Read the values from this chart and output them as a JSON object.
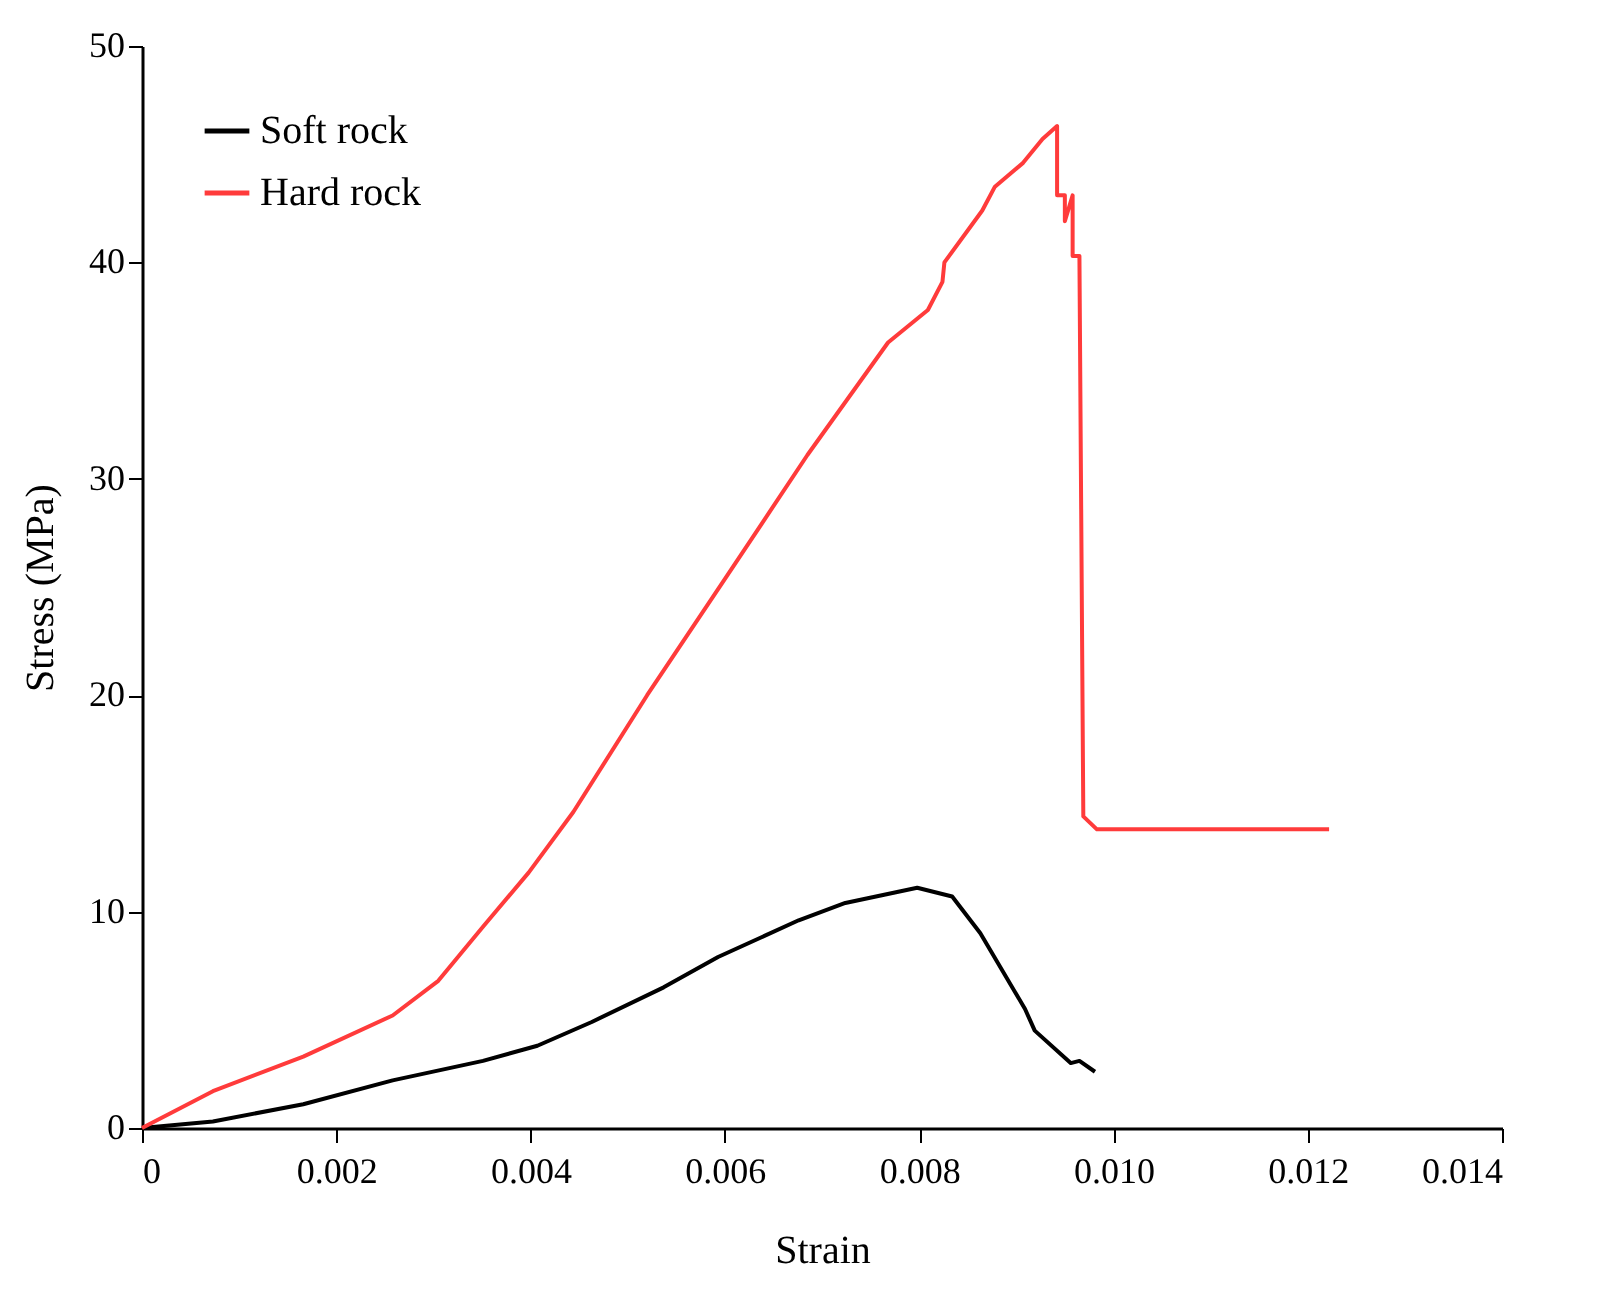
{
  "chart_data": {
    "type": "line",
    "xlabel": "Strain",
    "ylabel": "Stress (MPa)",
    "xlim": [
      0,
      0.014
    ],
    "ylim": [
      0,
      50
    ],
    "xticks": [
      0,
      0.002,
      0.004,
      0.006,
      0.008,
      {
        "value": 0.01,
        "label": "0.010"
      },
      0.012,
      0.014
    ],
    "yticks": [
      0,
      10,
      20,
      30,
      40,
      50
    ],
    "grid": false,
    "legend": "top left",
    "line_style": "solid",
    "marker": "none",
    "series": [
      {
        "name": "Soft rock",
        "color": "#000000",
        "x": [
          0,
          0.00073,
          0.00166,
          0.00258,
          0.00351,
          0.00407,
          0.00463,
          0.00537,
          0.00593,
          0.00676,
          0.00724,
          0.00798,
          0.00834,
          0.00863,
          0.00909,
          0.00919,
          0.00956,
          0.00965,
          0.00981
        ],
        "values": [
          0,
          0.3,
          1.1,
          2.2,
          3.1,
          3.8,
          4.9,
          6.5,
          7.9,
          9.6,
          10.4,
          11.1,
          10.7,
          9.0,
          5.5,
          4.5,
          3.0,
          3.1,
          2.6
        ]
      },
      {
        "name": "Hard rock",
        "color": "#ff3b3b",
        "x": [
          0,
          0.00073,
          0.00166,
          0.00258,
          0.00305,
          0.00351,
          0.00398,
          0.00444,
          0.0052,
          0.00602,
          0.00685,
          0.00768,
          0.00809,
          0.00824,
          0.00826,
          0.00865,
          0.00878,
          0.00907,
          0.00927,
          0.00942,
          0.00942,
          0.0095,
          0.0095,
          0.00958,
          0.00958,
          0.00965,
          0.00969,
          0.00983,
          0.01222
        ],
        "values": [
          0,
          1.7,
          3.3,
          5.2,
          6.8,
          9.3,
          11.8,
          14.6,
          20,
          25.5,
          31.1,
          36.3,
          37.8,
          39.1,
          40.0,
          42.4,
          43.5,
          44.6,
          45.7,
          46.3,
          43.1,
          43.1,
          41.9,
          43.1,
          40.3,
          40.3,
          14.4,
          13.8,
          13.8
        ]
      }
    ]
  }
}
